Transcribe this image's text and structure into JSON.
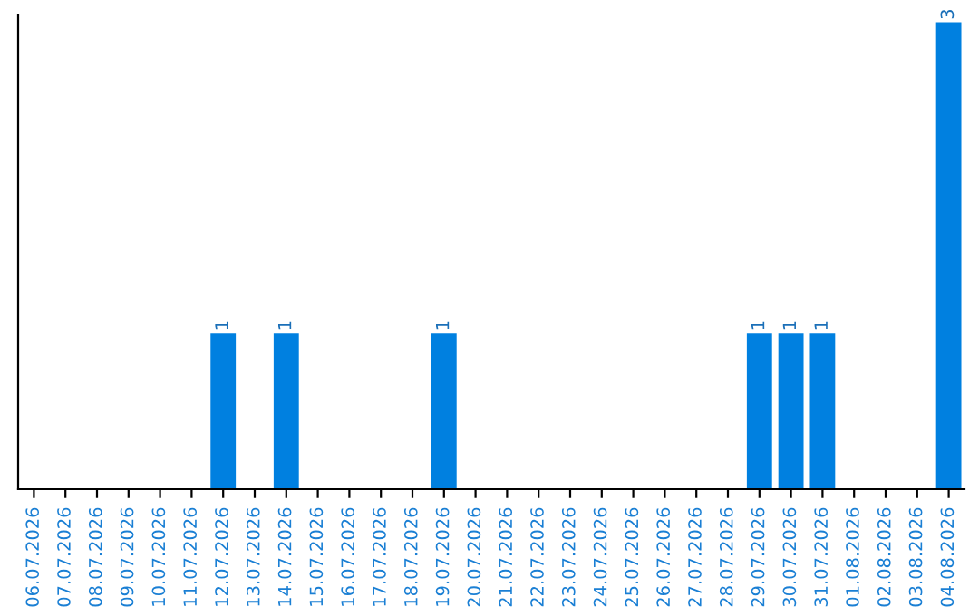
{
  "chart_data": {
    "type": "bar",
    "categories": [
      "06.07.2026",
      "07.07.2026",
      "08.07.2026",
      "09.07.2026",
      "10.07.2026",
      "11.07.2026",
      "12.07.2026",
      "13.07.2026",
      "14.07.2026",
      "15.07.2026",
      "16.07.2026",
      "17.07.2026",
      "18.07.2026",
      "19.07.2026",
      "20.07.2026",
      "21.07.2026",
      "22.07.2026",
      "23.07.2026",
      "24.07.2026",
      "25.07.2026",
      "26.07.2026",
      "27.07.2026",
      "28.07.2026",
      "29.07.2026",
      "30.07.2026",
      "31.07.2026",
      "01.08.2026",
      "02.08.2026",
      "03.08.2026",
      "04.08.2026"
    ],
    "values": [
      0,
      0,
      0,
      0,
      0,
      0,
      1,
      0,
      1,
      0,
      0,
      0,
      0,
      1,
      0,
      0,
      0,
      0,
      0,
      0,
      0,
      0,
      0,
      1,
      1,
      1,
      0,
      0,
      0,
      3
    ],
    "value_labels": [
      null,
      null,
      null,
      null,
      null,
      null,
      "1",
      null,
      "1",
      null,
      null,
      null,
      null,
      "1",
      null,
      null,
      null,
      null,
      null,
      null,
      null,
      null,
      null,
      "1",
      "1",
      "1",
      null,
      null,
      null,
      "3"
    ],
    "color": "#0080e0",
    "ylim": [
      0,
      3.05
    ],
    "tick_labels": "x",
    "grid": false
  }
}
